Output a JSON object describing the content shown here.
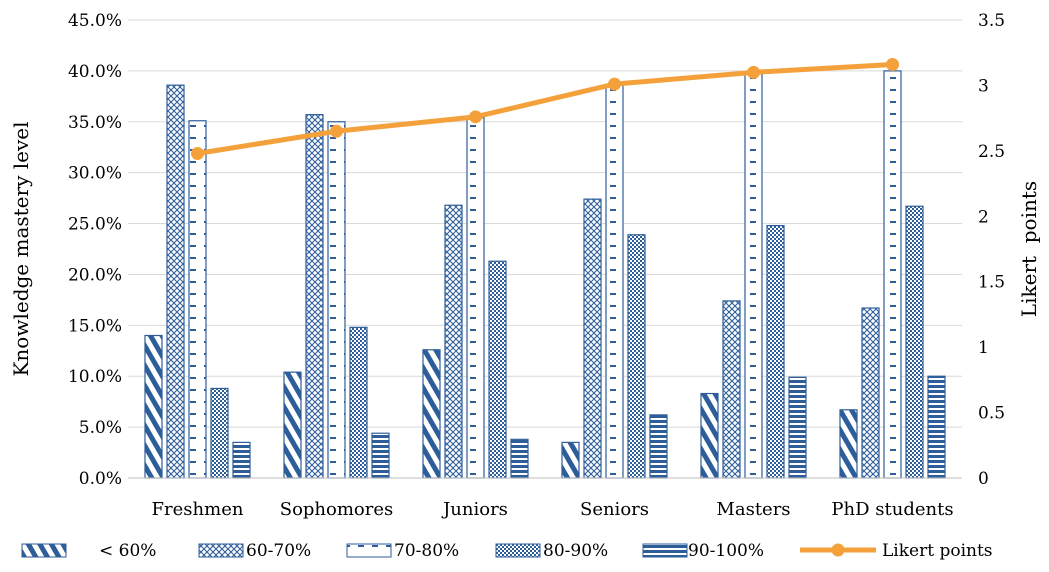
{
  "chart_data": {
    "type": "bar",
    "categories": [
      "Freshmen",
      "Sophomores",
      "Juniors",
      "Seniors",
      "Masters",
      "PhD students"
    ],
    "series": [
      {
        "name": "< 60%",
        "values": [
          14.0,
          10.4,
          12.6,
          3.5,
          8.3,
          6.7
        ]
      },
      {
        "name": "60-70%",
        "values": [
          38.6,
          35.7,
          26.8,
          27.4,
          17.4,
          16.7
        ]
      },
      {
        "name": "70-80%",
        "values": [
          35.1,
          35.0,
          35.4,
          38.6,
          39.7,
          40.0
        ]
      },
      {
        "name": "80-90%",
        "values": [
          8.8,
          14.8,
          21.3,
          23.9,
          24.8,
          26.7
        ]
      },
      {
        "name": "90-100%",
        "values": [
          3.5,
          4.4,
          3.8,
          6.2,
          9.9,
          10.0
        ]
      }
    ],
    "line_series": {
      "name": "Likert points",
      "values": [
        2.48,
        2.65,
        2.76,
        3.01,
        3.1,
        3.16
      ],
      "color": "#F4A13B"
    },
    "ylabel": "Knowledge mastery level",
    "y2label": "Likert  points",
    "ylim": [
      0,
      45
    ],
    "y2lim": [
      0,
      3.5
    ],
    "yticks": [
      "0.0%",
      "5.0%",
      "10.0%",
      "15.0%",
      "20.0%",
      "25.0%",
      "30.0%",
      "35.0%",
      "40.0%",
      "45.0%"
    ],
    "y2ticks": [
      "0",
      "0.5",
      "1",
      "1.5",
      "2",
      "2.5",
      "3",
      "3.5"
    ],
    "grid": true,
    "legend": "bottom",
    "bar_color": "#2E5E9A"
  }
}
